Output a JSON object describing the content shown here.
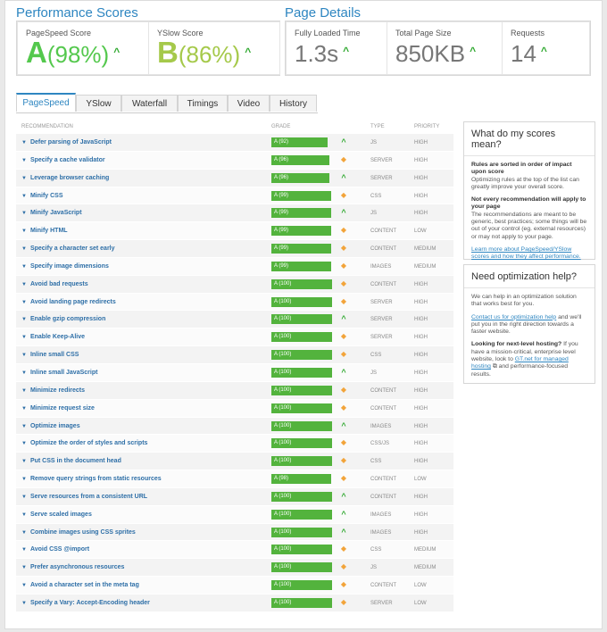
{
  "performance": {
    "title": "Performance Scores",
    "pagespeed": {
      "label": "PageSpeed Score",
      "grade": "A",
      "score": "(98%)"
    },
    "yslow": {
      "label": "YSlow Score",
      "grade": "B",
      "score": "(86%)"
    },
    "trend_glyph": "^"
  },
  "details": {
    "title": "Page Details",
    "load": {
      "label": "Fully Loaded Time",
      "value": "1.3s"
    },
    "size": {
      "label": "Total Page Size",
      "value": "850KB"
    },
    "requests": {
      "label": "Requests",
      "value": "14"
    }
  },
  "tabs": [
    "PageSpeed",
    "YSlow",
    "Waterfall",
    "Timings",
    "Video",
    "History"
  ],
  "table": {
    "headers": {
      "recommendation": "RECOMMENDATION",
      "grade": "GRADE",
      "type": "TYPE",
      "priority": "PRIORITY"
    },
    "rows": [
      {
        "name": "Defer parsing of JavaScript",
        "grade": "A (92)",
        "ind": "up",
        "type": "JS",
        "priority": "HIGH",
        "pct": 0.92
      },
      {
        "name": "Specify a cache validator",
        "grade": "A (96)",
        "ind": "dia",
        "type": "SERVER",
        "priority": "HIGH",
        "pct": 0.96
      },
      {
        "name": "Leverage browser caching",
        "grade": "A (96)",
        "ind": "up",
        "type": "SERVER",
        "priority": "HIGH",
        "pct": 0.96
      },
      {
        "name": "Minify CSS",
        "grade": "A (99)",
        "ind": "dia",
        "type": "CSS",
        "priority": "HIGH",
        "pct": 0.99
      },
      {
        "name": "Minify JavaScript",
        "grade": "A (99)",
        "ind": "up",
        "type": "JS",
        "priority": "HIGH",
        "pct": 0.99
      },
      {
        "name": "Minify HTML",
        "grade": "A (99)",
        "ind": "dia",
        "type": "CONTENT",
        "priority": "LOW",
        "pct": 0.99
      },
      {
        "name": "Specify a character set early",
        "grade": "A (99)",
        "ind": "dia",
        "type": "CONTENT",
        "priority": "MEDIUM",
        "pct": 0.99
      },
      {
        "name": "Specify image dimensions",
        "grade": "A (99)",
        "ind": "dia",
        "type": "IMAGES",
        "priority": "MEDIUM",
        "pct": 0.99
      },
      {
        "name": "Avoid bad requests",
        "grade": "A (100)",
        "ind": "dia",
        "type": "CONTENT",
        "priority": "HIGH",
        "pct": 1.0
      },
      {
        "name": "Avoid landing page redirects",
        "grade": "A (100)",
        "ind": "dia",
        "type": "SERVER",
        "priority": "HIGH",
        "pct": 1.0
      },
      {
        "name": "Enable gzip compression",
        "grade": "A (100)",
        "ind": "up",
        "type": "SERVER",
        "priority": "HIGH",
        "pct": 1.0
      },
      {
        "name": "Enable Keep-Alive",
        "grade": "A (100)",
        "ind": "dia",
        "type": "SERVER",
        "priority": "HIGH",
        "pct": 1.0
      },
      {
        "name": "Inline small CSS",
        "grade": "A (100)",
        "ind": "dia",
        "type": "CSS",
        "priority": "HIGH",
        "pct": 1.0
      },
      {
        "name": "Inline small JavaScript",
        "grade": "A (100)",
        "ind": "up",
        "type": "JS",
        "priority": "HIGH",
        "pct": 1.0
      },
      {
        "name": "Minimize redirects",
        "grade": "A (100)",
        "ind": "dia",
        "type": "CONTENT",
        "priority": "HIGH",
        "pct": 1.0
      },
      {
        "name": "Minimize request size",
        "grade": "A (100)",
        "ind": "dia",
        "type": "CONTENT",
        "priority": "HIGH",
        "pct": 1.0
      },
      {
        "name": "Optimize images",
        "grade": "A (100)",
        "ind": "up",
        "type": "IMAGES",
        "priority": "HIGH",
        "pct": 1.0
      },
      {
        "name": "Optimize the order of styles and scripts",
        "grade": "A (100)",
        "ind": "dia",
        "type": "CSS/JS",
        "priority": "HIGH",
        "pct": 1.0
      },
      {
        "name": "Put CSS in the document head",
        "grade": "A (100)",
        "ind": "dia",
        "type": "CSS",
        "priority": "HIGH",
        "pct": 1.0
      },
      {
        "name": "Remove query strings from static resources",
        "grade": "A (98)",
        "ind": "dia",
        "type": "CONTENT",
        "priority": "LOW",
        "pct": 0.98
      },
      {
        "name": "Serve resources from a consistent URL",
        "grade": "A (100)",
        "ind": "up",
        "type": "CONTENT",
        "priority": "HIGH",
        "pct": 1.0
      },
      {
        "name": "Serve scaled images",
        "grade": "A (100)",
        "ind": "up",
        "type": "IMAGES",
        "priority": "HIGH",
        "pct": 1.0
      },
      {
        "name": "Combine images using CSS sprites",
        "grade": "A (100)",
        "ind": "up",
        "type": "IMAGES",
        "priority": "HIGH",
        "pct": 1.0
      },
      {
        "name": "Avoid CSS @import",
        "grade": "A (100)",
        "ind": "dia",
        "type": "CSS",
        "priority": "MEDIUM",
        "pct": 1.0
      },
      {
        "name": "Prefer asynchronous resources",
        "grade": "A (100)",
        "ind": "dia",
        "type": "JS",
        "priority": "MEDIUM",
        "pct": 1.0
      },
      {
        "name": "Avoid a character set in the meta tag",
        "grade": "A (100)",
        "ind": "dia",
        "type": "CONTENT",
        "priority": "LOW",
        "pct": 1.0
      },
      {
        "name": "Specify a Vary: Accept-Encoding header",
        "grade": "A (100)",
        "ind": "dia",
        "type": "SERVER",
        "priority": "LOW",
        "pct": 1.0
      }
    ]
  },
  "sidebar": {
    "scores": {
      "title": "What do my scores mean?",
      "p1_bold": "Rules are sorted in order of impact upon score",
      "p1": "Optimizing rules at the top of the list can greatly improve your overall score.",
      "p2_bold": "Not every recommendation will apply to your page",
      "p2": "The recommendations are meant to be generic, best practices; some things will be out of your control (eg. external resources) or may not apply to your page.",
      "link": "Learn more about PageSpeed/YSlow scores and how they affect performance."
    },
    "help": {
      "title": "Need optimization help?",
      "p1": "We can help in an optimization solution that works best for you.",
      "link1": "Contact us for optimization help",
      "p2_rest": "and we'll put you in the right direction towards a faster website.",
      "p3_bold": "Looking for next-level hosting?",
      "p3": "If you have a mission-critical, enterprise level website, look to",
      "link2": "GT.net for managed hosting",
      "p3_end": "and performance-focused results."
    }
  }
}
